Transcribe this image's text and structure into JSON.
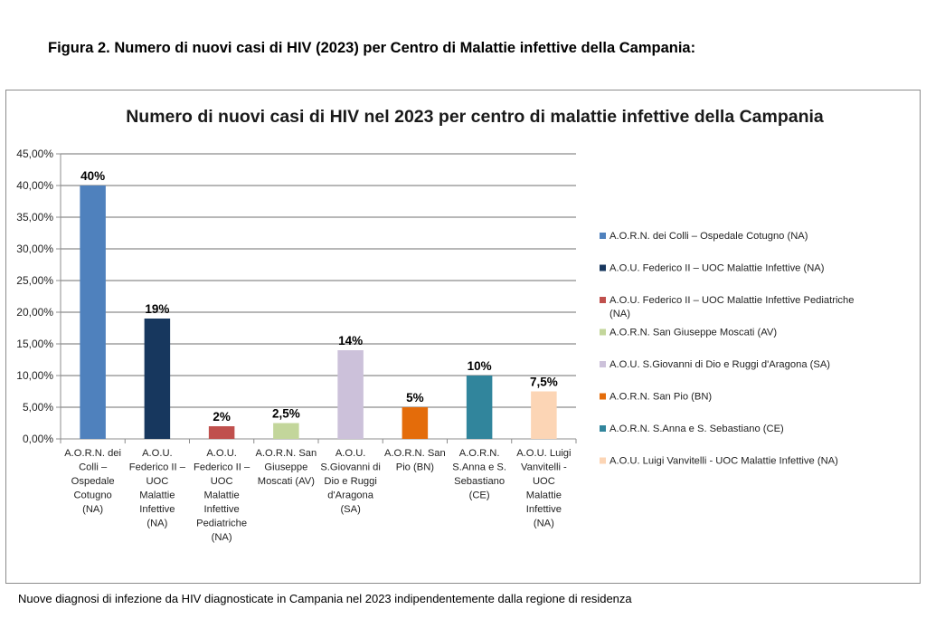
{
  "figure_caption": "Figura 2. Numero di nuovi casi di HIV (2023) per Centro di Malattie infettive della Campania:",
  "footnote": "Nuove diagnosi di infezione da HIV diagnosticate in Campania nel 2023 indipendentemente dalla regione di residenza",
  "chart_data": {
    "type": "bar",
    "title": "Numero di nuovi casi di HIV nel 2023 per centro di malattie infettive della Campania",
    "xlabel": "",
    "ylabel": "",
    "ylim": [
      0,
      45
    ],
    "grid": true,
    "legend_position": "right",
    "y_ticks": [
      "0,00%",
      "5,00%",
      "10,00%",
      "15,00%",
      "20,00%",
      "25,00%",
      "30,00%",
      "35,00%",
      "40,00%",
      "45,00%"
    ],
    "categories": [
      "A.O.R.N. dei Colli – Ospedale Cotugno (NA)",
      "A.O.U. Federico II – UOC Malattie Infettive (NA)",
      "A.O.U. Federico II – UOC Malattie Infettive Pediatriche (NA)",
      "A.O.R.N. San Giuseppe Moscati (AV)",
      "A.O.U. S.Giovanni di Dio e Ruggi d'Aragona (SA)",
      "A.O.R.N. San Pio (BN)",
      "A.O.R.N. S.Anna e S. Sebastiano (CE)",
      "A.O.U. Luigi Vanvitelli - UOC Malattie Infettive (NA)"
    ],
    "category_label_lines": [
      [
        "A.O.R.N. dei",
        "Colli –",
        "Ospedale",
        "Cotugno",
        "(NA)"
      ],
      [
        "A.O.U.",
        "Federico II –",
        "UOC",
        "Malattie",
        "Infettive",
        "(NA)"
      ],
      [
        "A.O.U.",
        "Federico II –",
        "UOC",
        "Malattie",
        "Infettive",
        "Pediatriche",
        "(NA)"
      ],
      [
        "A.O.R.N. San",
        "Giuseppe",
        "Moscati (AV)"
      ],
      [
        "A.O.U.",
        "S.Giovanni di",
        "Dio e Ruggi",
        "d'Aragona",
        "(SA)"
      ],
      [
        "A.O.R.N. San",
        "Pio (BN)"
      ],
      [
        "A.O.R.N.",
        "S.Anna e S.",
        "Sebastiano",
        "(CE)"
      ],
      [
        "A.O.U. Luigi",
        "Vanvitelli -",
        "UOC",
        "Malattie",
        "Infettive",
        "(NA)"
      ]
    ],
    "values": [
      40,
      19,
      2,
      2.5,
      14,
      5,
      10,
      7.5
    ],
    "data_labels": [
      "40%",
      "19%",
      "2%",
      "2,5%",
      "14%",
      "5%",
      "10%",
      "7,5%"
    ],
    "colors": [
      "#4f81bd",
      "#17375e",
      "#c0504d",
      "#c3d69b",
      "#ccc1da",
      "#e46c0a",
      "#31859c",
      "#fcd5b5"
    ],
    "legend_entries": [
      [
        "A.O.R.N. dei Colli – Ospedale Cotugno (NA)"
      ],
      [
        "A.O.U. Federico II – UOC Malattie Infettive (NA)"
      ],
      [
        "A.O.U. Federico II – UOC Malattie Infettive Pediatriche",
        "(NA)"
      ],
      [
        "A.O.R.N. San Giuseppe Moscati (AV)"
      ],
      [
        "A.O.U. S.Giovanni di Dio e Ruggi d'Aragona (SA)"
      ],
      [
        "A.O.R.N. San Pio (BN)"
      ],
      [
        "A.O.R.N. S.Anna e S. Sebastiano (CE)"
      ],
      [
        "A.O.U. Luigi Vanvitelli - UOC Malattie Infettive (NA)"
      ]
    ]
  }
}
